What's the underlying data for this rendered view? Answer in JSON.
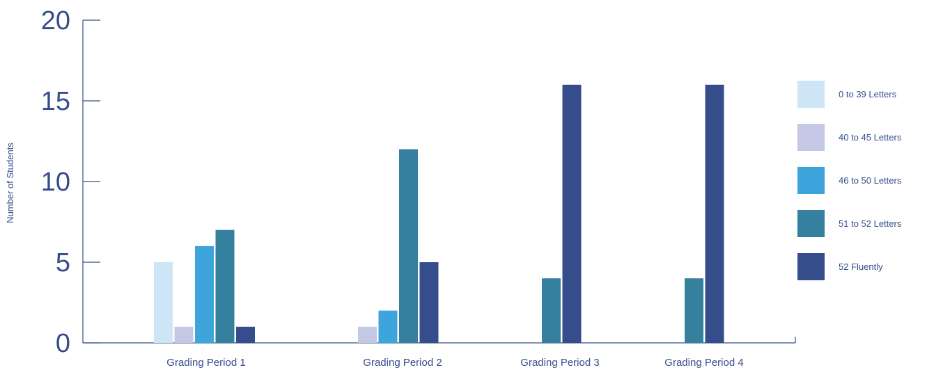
{
  "chart_data": {
    "type": "bar",
    "title": "",
    "xlabel": "",
    "ylabel": "Number of Students",
    "ylim": [
      0,
      20
    ],
    "yticks": [
      0,
      5,
      10,
      15,
      20
    ],
    "grid": false,
    "legend_position": "right",
    "categories": [
      "Grading Period 1",
      "Grading Period 2",
      "Grading Period 3",
      "Grading Period 4"
    ],
    "series": [
      {
        "name": "0 to 39 Letters",
        "color": "#cde5f5",
        "values": [
          5,
          0,
          0,
          0
        ]
      },
      {
        "name": "40 to 45 Letters",
        "color": "#c5c8e4",
        "values": [
          1,
          1,
          0,
          0
        ]
      },
      {
        "name": "46 to 50 Letters",
        "color": "#3ea4dc",
        "values": [
          6,
          2,
          0,
          0
        ]
      },
      {
        "name": "51 to 52 Letters",
        "color": "#35809f",
        "values": [
          7,
          12,
          4,
          4
        ]
      },
      {
        "name": "52 Fluently",
        "color": "#354d8b",
        "values": [
          1,
          5,
          16,
          16
        ]
      }
    ]
  }
}
